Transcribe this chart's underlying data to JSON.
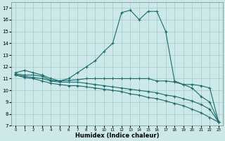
{
  "xlabel": "Humidex (Indice chaleur)",
  "bg_color": "#cce8e8",
  "grid_color": "#aacfcf",
  "line_color": "#1a6b6b",
  "xlim": [
    -0.5,
    23.5
  ],
  "ylim": [
    7,
    17.5
  ],
  "yticks": [
    7,
    8,
    9,
    10,
    11,
    12,
    13,
    14,
    15,
    16,
    17
  ],
  "xticks": [
    0,
    1,
    2,
    3,
    4,
    5,
    6,
    7,
    8,
    9,
    10,
    11,
    12,
    13,
    14,
    15,
    16,
    17,
    18,
    19,
    20,
    21,
    22,
    23
  ],
  "series": [
    {
      "x": [
        0,
        1,
        2,
        3,
        4,
        5,
        6,
        7,
        8,
        9,
        10,
        11,
        12,
        13,
        14,
        15,
        16,
        17,
        18,
        19,
        20,
        21,
        22,
        23
      ],
      "y": [
        11.5,
        11.7,
        11.5,
        11.3,
        11.0,
        10.8,
        11.0,
        11.5,
        12.0,
        12.5,
        13.3,
        14.0,
        16.6,
        16.8,
        16.0,
        16.7,
        16.7,
        15.0,
        10.8,
        10.5,
        10.2,
        9.5,
        9.0,
        7.3
      ]
    },
    {
      "x": [
        0,
        1,
        2,
        3,
        4,
        5,
        6,
        7,
        8,
        9,
        10,
        11,
        12,
        13,
        14,
        15,
        16,
        17,
        18,
        19,
        20,
        21,
        22,
        23
      ],
      "y": [
        11.4,
        11.3,
        11.3,
        11.2,
        10.85,
        10.8,
        10.85,
        10.9,
        11.0,
        11.0,
        11.0,
        11.0,
        11.0,
        11.0,
        11.0,
        11.0,
        10.8,
        10.8,
        10.7,
        10.5,
        10.5,
        10.4,
        10.2,
        7.3
      ]
    },
    {
      "x": [
        0,
        1,
        2,
        3,
        4,
        5,
        6,
        7,
        8,
        9,
        10,
        11,
        12,
        13,
        14,
        15,
        16,
        17,
        18,
        19,
        20,
        21,
        22,
        23
      ],
      "y": [
        11.3,
        11.2,
        11.1,
        11.0,
        10.8,
        10.7,
        10.7,
        10.7,
        10.6,
        10.5,
        10.4,
        10.3,
        10.2,
        10.1,
        10.0,
        9.9,
        9.8,
        9.6,
        9.5,
        9.3,
        9.1,
        8.8,
        8.4,
        7.3
      ]
    },
    {
      "x": [
        0,
        1,
        2,
        3,
        4,
        5,
        6,
        7,
        8,
        9,
        10,
        11,
        12,
        13,
        14,
        15,
        16,
        17,
        18,
        19,
        20,
        21,
        22,
        23
      ],
      "y": [
        11.3,
        11.1,
        11.0,
        10.8,
        10.6,
        10.5,
        10.4,
        10.4,
        10.3,
        10.2,
        10.1,
        10.0,
        9.9,
        9.7,
        9.6,
        9.4,
        9.3,
        9.1,
        8.9,
        8.7,
        8.4,
        8.1,
        7.7,
        7.3
      ]
    }
  ]
}
